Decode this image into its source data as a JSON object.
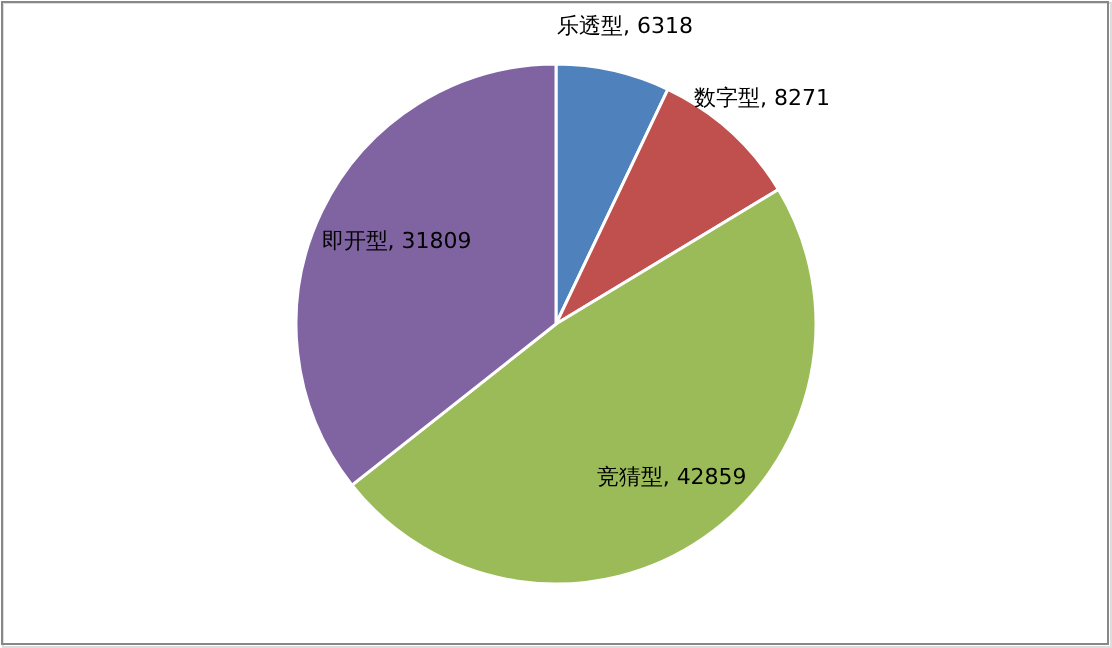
{
  "chart_data": {
    "type": "pie",
    "categories": [
      "乐透型",
      "数字型",
      "竞猜型",
      "即开型"
    ],
    "values": [
      6318,
      8271,
      42859,
      31809
    ],
    "colors": [
      "#4f81bd",
      "#c0504d",
      "#9bbb59",
      "#8064a2"
    ],
    "value_labels": [
      ", 6318",
      ", 8271",
      ", 42859",
      ", 31809"
    ]
  }
}
